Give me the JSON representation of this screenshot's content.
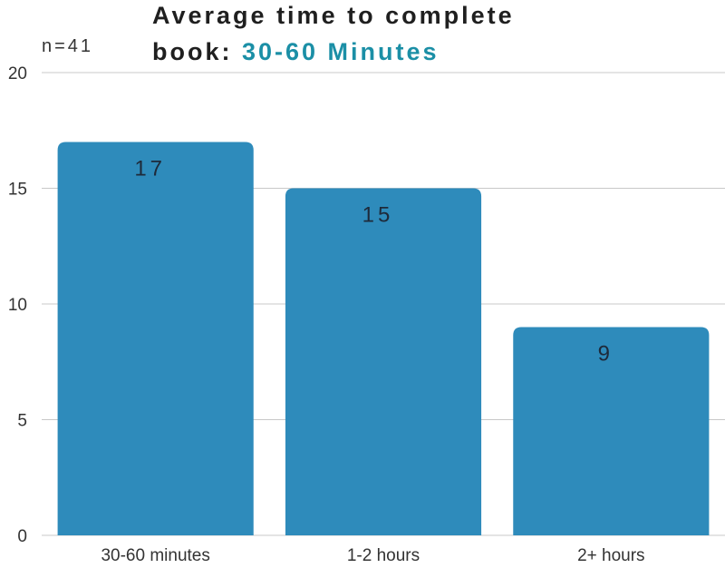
{
  "title": {
    "line1": "Average time to complete",
    "line2_prefix": "book: ",
    "line2_highlight": "30-60 Minutes"
  },
  "sample_size": "n=41",
  "colors": {
    "bar": "#2e8bbb",
    "accent": "#1b8fa6",
    "grid": "#c8c8c8",
    "bar_label": "#1e2a3a",
    "axis_text": "#333333"
  },
  "chart_data": {
    "type": "bar",
    "categories": [
      "30-60 minutes",
      "1-2 hours",
      "2+ hours"
    ],
    "values": [
      17,
      15,
      9
    ],
    "data_labels": [
      "17",
      "15",
      "9"
    ],
    "yticks": [
      0,
      5,
      10,
      15,
      20
    ],
    "ylim": [
      0,
      20
    ],
    "grid": true,
    "xlabel": "",
    "ylabel": ""
  }
}
